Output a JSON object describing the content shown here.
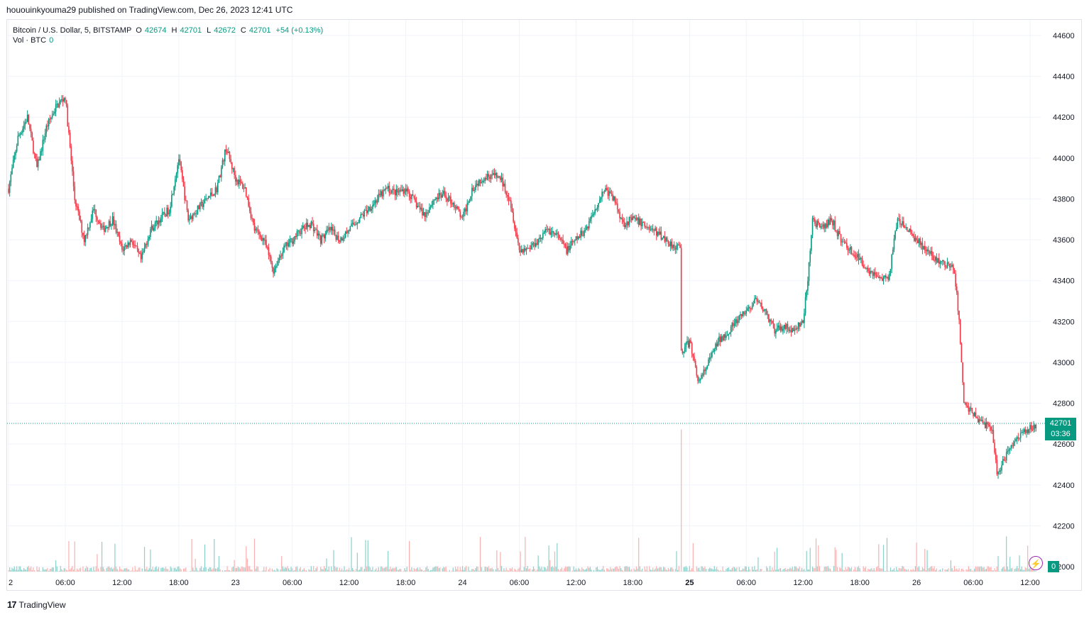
{
  "publish": {
    "text": "hououinkyouma29 published on TradingView.com, Dec 26, 2023 12:41 UTC"
  },
  "legend": {
    "symbol": "Bitcoin / U.S. Dollar, 5, BITSTAMP",
    "o_label": "O",
    "o_value": "42674",
    "h_label": "H",
    "h_value": "42701",
    "l_label": "L",
    "l_value": "42672",
    "c_label": "C",
    "c_value": "42701",
    "change": "+54 (+0.13%)",
    "vol_label": "Vol · BTC",
    "vol_value": "0"
  },
  "price_tag": {
    "price": "42701",
    "countdown": "03:36"
  },
  "volume_tag": "0",
  "footer": {
    "logo_mark": "17",
    "brand": "TradingView"
  },
  "colors": {
    "up": "#089981",
    "down": "#f23645",
    "grid": "#f0f3fa",
    "axis_text": "#131722"
  },
  "chart_data": {
    "type": "candlestick",
    "symbol": "BTCUSD",
    "interval": "5",
    "exchange": "BITSTAMP",
    "y_ticks": [
      44600,
      44400,
      44200,
      44000,
      43800,
      43600,
      43400,
      43200,
      43000,
      42800,
      42600,
      42400,
      42200,
      42000
    ],
    "x_ticks": [
      {
        "label": "2",
        "bold": false,
        "hours": 0
      },
      {
        "label": "06:00",
        "bold": false,
        "hours": 6
      },
      {
        "label": "12:00",
        "bold": false,
        "hours": 12
      },
      {
        "label": "18:00",
        "bold": false,
        "hours": 18
      },
      {
        "label": "23",
        "bold": false,
        "hours": 24
      },
      {
        "label": "06:00",
        "bold": false,
        "hours": 30
      },
      {
        "label": "12:00",
        "bold": false,
        "hours": 36
      },
      {
        "label": "18:00",
        "bold": false,
        "hours": 42
      },
      {
        "label": "24",
        "bold": false,
        "hours": 48
      },
      {
        "label": "06:00",
        "bold": false,
        "hours": 54
      },
      {
        "label": "12:00",
        "bold": false,
        "hours": 60
      },
      {
        "label": "18:00",
        "bold": false,
        "hours": 66
      },
      {
        "label": "25",
        "bold": true,
        "hours": 72
      },
      {
        "label": "06:00",
        "bold": false,
        "hours": 78
      },
      {
        "label": "12:00",
        "bold": false,
        "hours": 84
      },
      {
        "label": "18:00",
        "bold": false,
        "hours": 90
      },
      {
        "label": "26",
        "bold": false,
        "hours": 96
      },
      {
        "label": "06:00",
        "bold": false,
        "hours": 102
      },
      {
        "label": "12:00",
        "bold": false,
        "hours": 108
      }
    ],
    "price_path": [
      [
        0,
        43850
      ],
      [
        1,
        44100
      ],
      [
        2,
        44200
      ],
      [
        3,
        43950
      ],
      [
        4,
        44150
      ],
      [
        5,
        44250
      ],
      [
        6,
        44300
      ],
      [
        7,
        43800
      ],
      [
        8,
        43600
      ],
      [
        9,
        43750
      ],
      [
        10,
        43650
      ],
      [
        11,
        43700
      ],
      [
        12,
        43550
      ],
      [
        13,
        43600
      ],
      [
        14,
        43500
      ],
      [
        15,
        43650
      ],
      [
        16,
        43700
      ],
      [
        17,
        43750
      ],
      [
        18,
        44000
      ],
      [
        19,
        43700
      ],
      [
        20,
        43750
      ],
      [
        21,
        43800
      ],
      [
        22,
        43850
      ],
      [
        23,
        44050
      ],
      [
        24,
        43900
      ],
      [
        25,
        43850
      ],
      [
        26,
        43650
      ],
      [
        27,
        43600
      ],
      [
        28,
        43450
      ],
      [
        29,
        43550
      ],
      [
        30,
        43600
      ],
      [
        31,
        43650
      ],
      [
        32,
        43680
      ],
      [
        33,
        43600
      ],
      [
        34,
        43650
      ],
      [
        35,
        43600
      ],
      [
        36,
        43650
      ],
      [
        37,
        43700
      ],
      [
        38,
        43750
      ],
      [
        39,
        43800
      ],
      [
        40,
        43850
      ],
      [
        41,
        43830
      ],
      [
        42,
        43850
      ],
      [
        43,
        43780
      ],
      [
        44,
        43720
      ],
      [
        45,
        43800
      ],
      [
        46,
        43820
      ],
      [
        47,
        43780
      ],
      [
        48,
        43700
      ],
      [
        49,
        43850
      ],
      [
        50,
        43900
      ],
      [
        51,
        43920
      ],
      [
        52,
        43900
      ],
      [
        53,
        43800
      ],
      [
        54,
        43550
      ],
      [
        55,
        43560
      ],
      [
        56,
        43600
      ],
      [
        57,
        43650
      ],
      [
        58,
        43620
      ],
      [
        59,
        43550
      ],
      [
        60,
        43600
      ],
      [
        61,
        43650
      ],
      [
        62,
        43750
      ],
      [
        63,
        43850
      ],
      [
        64,
        43800
      ],
      [
        65,
        43680
      ],
      [
        66,
        43700
      ],
      [
        67,
        43680
      ],
      [
        68,
        43650
      ],
      [
        69,
        43620
      ],
      [
        70,
        43580
      ],
      [
        71,
        43560
      ],
      [
        71.1,
        43050
      ],
      [
        72,
        43100
      ],
      [
        73,
        42900
      ],
      [
        74,
        43000
      ],
      [
        75,
        43100
      ],
      [
        76,
        43150
      ],
      [
        77,
        43200
      ],
      [
        78,
        43250
      ],
      [
        79,
        43300
      ],
      [
        80,
        43250
      ],
      [
        81,
        43150
      ],
      [
        82,
        43180
      ],
      [
        83,
        43150
      ],
      [
        84,
        43200
      ],
      [
        84.5,
        43400
      ],
      [
        85,
        43700
      ],
      [
        86,
        43650
      ],
      [
        87,
        43700
      ],
      [
        88,
        43600
      ],
      [
        89,
        43550
      ],
      [
        90,
        43500
      ],
      [
        91,
        43450
      ],
      [
        92,
        43420
      ],
      [
        93,
        43400
      ],
      [
        94,
        43700
      ],
      [
        95,
        43650
      ],
      [
        96,
        43600
      ],
      [
        97,
        43550
      ],
      [
        98,
        43500
      ],
      [
        99,
        43480
      ],
      [
        100,
        43450
      ],
      [
        100.5,
        43200
      ],
      [
        101,
        42800
      ],
      [
        102,
        42750
      ],
      [
        103,
        42700
      ],
      [
        104,
        42680
      ],
      [
        104.5,
        42450
      ],
      [
        105,
        42500
      ],
      [
        106,
        42600
      ],
      [
        107,
        42650
      ],
      [
        108,
        42680
      ],
      [
        108.7,
        42701
      ]
    ],
    "last_price": 42701,
    "ylim": [
      41980,
      44680
    ],
    "x_range_hours": [
      0,
      109.3
    ]
  }
}
